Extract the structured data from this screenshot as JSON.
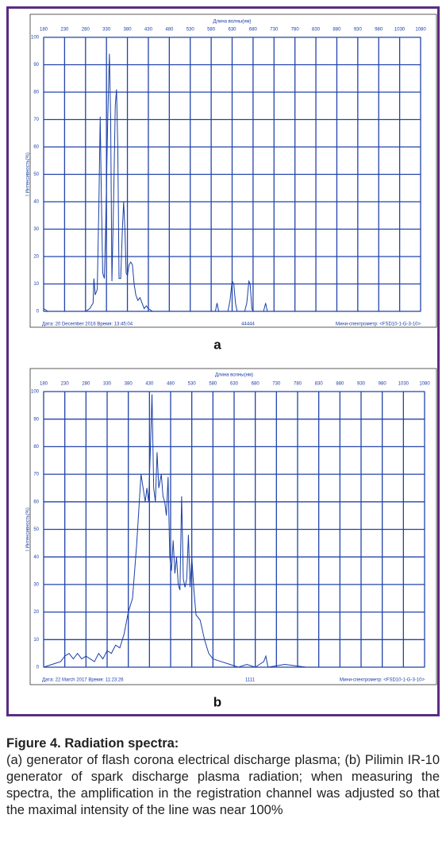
{
  "chart_data": [
    {
      "type": "line",
      "panel_label": "a",
      "x_label": "Длина волны(нм)",
      "y_label": "I Интенсивность(%)",
      "footer_date": "Дата: 20 December 2016   Время: 13:45:04",
      "footer_sample": "44444",
      "footer_device": "Мини-спектрометр: <FSD10-1-G-3-10>",
      "color": "#1a3fa8",
      "grid": true,
      "xlim": [
        180,
        1080
      ],
      "ylim": [
        0,
        100
      ],
      "xticks": [
        180,
        230,
        280,
        330,
        380,
        430,
        480,
        530,
        580,
        630,
        680,
        730,
        780,
        830,
        880,
        930,
        980,
        1030,
        1080
      ],
      "yticks": [
        0,
        10,
        20,
        30,
        40,
        50,
        60,
        70,
        80,
        90,
        100
      ],
      "x": [
        180,
        190,
        200,
        280,
        290,
        298,
        300,
        303,
        308,
        312,
        315,
        318,
        321,
        325,
        328,
        333,
        337,
        340,
        343,
        347,
        351,
        354,
        357,
        360,
        364,
        368,
        371,
        374,
        377,
        380,
        384,
        388,
        392,
        396,
        400,
        405,
        410,
        415,
        420,
        425,
        430,
        440,
        590,
        594,
        598,
        620,
        625,
        630,
        634,
        638,
        642,
        660,
        665,
        670,
        673,
        677,
        680,
        705,
        710,
        714,
        800,
        1080
      ],
      "values": [
        1,
        0,
        0,
        0,
        1,
        3,
        12,
        6,
        8,
        40,
        71,
        40,
        14,
        12,
        30,
        70,
        94,
        70,
        11,
        40,
        75,
        81,
        60,
        12,
        12,
        30,
        40,
        30,
        14,
        13,
        17,
        18,
        17,
        10,
        6,
        4,
        5,
        3,
        1,
        2,
        1,
        0,
        0,
        3,
        0,
        0,
        4,
        11,
        10,
        3,
        0,
        0,
        3,
        11,
        10,
        1,
        0,
        0,
        3,
        0,
        0,
        0
      ]
    },
    {
      "type": "line",
      "panel_label": "b",
      "x_label": "Длина волны(нм)",
      "y_label": "I Интенсивность(%)",
      "footer_date": "Дата: 22 March 2017   Время: 11:23:26",
      "footer_sample": "1111",
      "footer_device": "Мини-спектрометр: <FSD10-1-G-3-10>",
      "color": "#1a3fa8",
      "grid": true,
      "xlim": [
        180,
        1080
      ],
      "ylim": [
        0,
        100
      ],
      "xticks": [
        180,
        230,
        280,
        330,
        380,
        430,
        480,
        530,
        580,
        630,
        680,
        730,
        780,
        830,
        880,
        930,
        980,
        1030,
        1080
      ],
      "yticks": [
        0,
        10,
        20,
        30,
        40,
        50,
        60,
        70,
        80,
        90,
        100
      ],
      "x": [
        180,
        200,
        220,
        230,
        240,
        250,
        260,
        270,
        280,
        290,
        300,
        310,
        320,
        330,
        340,
        350,
        360,
        370,
        380,
        390,
        400,
        410,
        420,
        424,
        428,
        432,
        436,
        440,
        444,
        448,
        452,
        458,
        462,
        466,
        470,
        474,
        478,
        482,
        486,
        490,
        494,
        498,
        502,
        506,
        510,
        514,
        518,
        522,
        526,
        530,
        535,
        540,
        550,
        560,
        570,
        580,
        600,
        620,
        640,
        660,
        680,
        700,
        705,
        710,
        750,
        800,
        1080
      ],
      "values": [
        0,
        1,
        2,
        4,
        5,
        3,
        5,
        3,
        4,
        3,
        2,
        5,
        3,
        6,
        5,
        8,
        7,
        12,
        20,
        25,
        45,
        70,
        60,
        65,
        60,
        78,
        99,
        65,
        60,
        78,
        65,
        70,
        62,
        60,
        55,
        69,
        40,
        35,
        46,
        34,
        40,
        30,
        28,
        62,
        32,
        29,
        32,
        48,
        29,
        40,
        28,
        19,
        17,
        10,
        5,
        3,
        2,
        1,
        0,
        1,
        0,
        2,
        4,
        0,
        1,
        0,
        0
      ]
    }
  ],
  "caption": {
    "title": "Figure 4. Radiation spectra:",
    "text": "(a) generator of flash corona electrical discharge plasma; (b) Pilimin IR-10 generator of spark discharge plasma radiation; when measuring the spectra, the amplification in the registration channel was adjusted so that the maximal intensity of the line was near 100%"
  }
}
